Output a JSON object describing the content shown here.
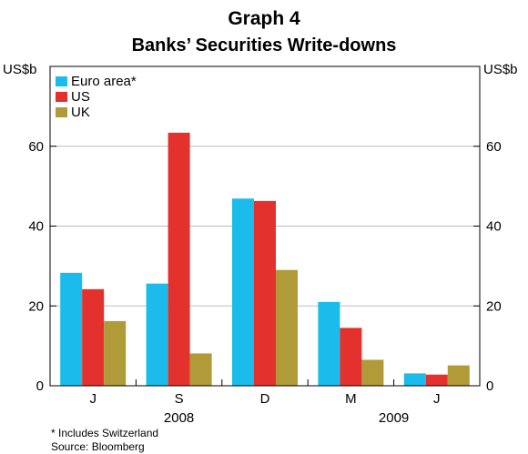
{
  "chart_data": {
    "type": "bar",
    "title": "Graph 4",
    "subtitle": "Banks’ Securities Write-downs",
    "ylabel_left": "US$b",
    "ylabel_right": "US$b",
    "ylim": [
      0,
      80
    ],
    "yticks": [
      0,
      20,
      40,
      60
    ],
    "grid": true,
    "legend_position": "top-left",
    "categories": [
      "J",
      "S",
      "D",
      "M",
      "J"
    ],
    "year_labels": [
      {
        "label": "2008",
        "from": 0,
        "to": 2
      },
      {
        "label": "2009",
        "from": 3,
        "to": 4
      }
    ],
    "series": [
      {
        "name": "Euro area*",
        "color": "#1BBCEB",
        "values": [
          28.3,
          25.6,
          46.9,
          21.0,
          3.1
        ]
      },
      {
        "name": "US",
        "color": "#E3312D",
        "values": [
          24.2,
          63.4,
          46.3,
          14.5,
          2.8
        ]
      },
      {
        "name": "UK",
        "color": "#B19A38",
        "values": [
          16.2,
          8.1,
          29.0,
          6.5,
          5.1
        ]
      }
    ],
    "footnotes": [
      "*   Includes Switzerland",
      "Source: Bloomberg"
    ]
  }
}
